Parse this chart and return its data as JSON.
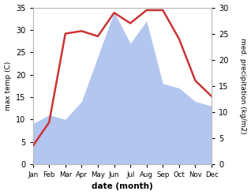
{
  "months": [
    "Jan",
    "Feb",
    "Mar",
    "Apr",
    "May",
    "Jun",
    "Jul",
    "Aug",
    "Sep",
    "Oct",
    "Nov",
    "Dec"
  ],
  "temperature": [
    3.5,
    8,
    25,
    25.5,
    24.5,
    29,
    27,
    29.5,
    29.5,
    24,
    16,
    13
  ],
  "precipitation": [
    9,
    11,
    10,
    14,
    24,
    34,
    27,
    32,
    18,
    17,
    14,
    13
  ],
  "temp_color": "#cc3333",
  "precip_fill_color": "#b3c6f0",
  "ylim_left": [
    0,
    35
  ],
  "ylim_right": [
    0,
    30
  ],
  "xlabel": "date (month)",
  "ylabel_left": "max temp (C)",
  "ylabel_right": "med. precipitation (kg/m2)",
  "background_color": "#ffffff",
  "left_ticks": [
    0,
    5,
    10,
    15,
    20,
    25,
    30,
    35
  ],
  "right_ticks": [
    0,
    5,
    10,
    15,
    20,
    25,
    30
  ]
}
